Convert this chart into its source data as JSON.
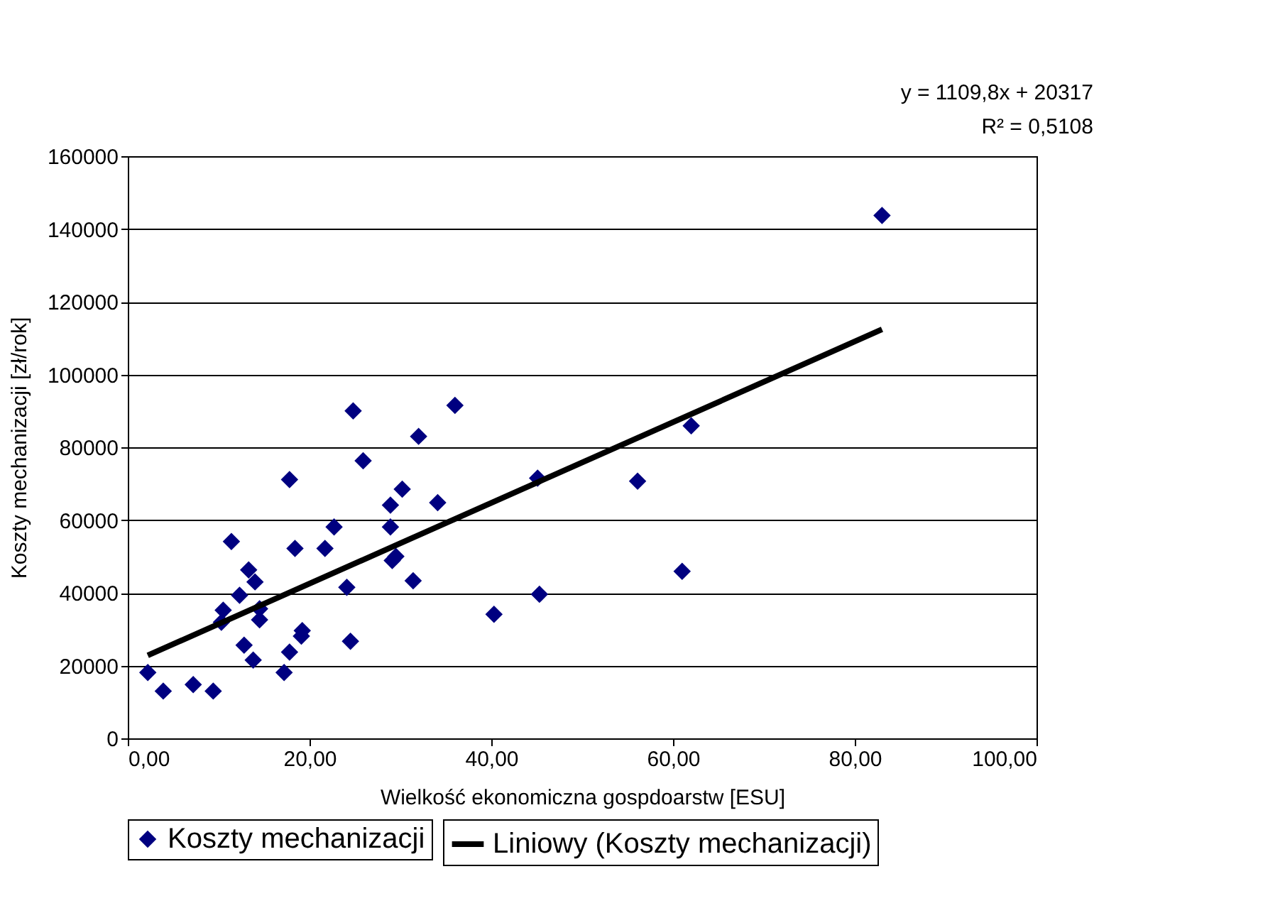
{
  "chart_data": {
    "type": "scatter",
    "xlabel": "Wielkość ekonomiczna gospdoarstw [ESU]",
    "ylabel": "Koszty mechanizacji [zł/rok]",
    "annotations": [
      "y = 1109,8x + 20317",
      "R² = 0,5108"
    ],
    "xlim": [
      0,
      100
    ],
    "xticks": [
      {
        "value": 0,
        "label": "0,00"
      },
      {
        "value": 20,
        "label": "20,00"
      },
      {
        "value": 40,
        "label": "40,00"
      },
      {
        "value": 60,
        "label": "60,00"
      },
      {
        "value": 80,
        "label": "80,00"
      },
      {
        "value": 100,
        "label": "100,00"
      }
    ],
    "ylim": [
      0,
      160000
    ],
    "yticks": [
      0,
      20000,
      40000,
      60000,
      80000,
      100000,
      120000,
      140000,
      160000
    ],
    "grid": "y",
    "legend": "bottom",
    "series": [
      {
        "name": "Koszty mechanizacji",
        "marker": "diamond",
        "color": "#000080",
        "x": [
          2.2,
          3.9,
          7.2,
          9.4,
          10.3,
          10.5,
          11.4,
          12.3,
          12.8,
          13.3,
          13.8,
          14.0,
          14.5,
          14.5,
          17.2,
          17.8,
          17.8,
          18.4,
          19.1,
          19.2,
          21.7,
          22.7,
          24.1,
          24.5,
          24.8,
          25.9,
          28.9,
          28.9,
          29.1,
          29.5,
          30.2,
          31.4,
          32.0,
          34.1,
          36.0,
          40.3,
          45.1,
          45.3,
          56.1,
          61.0,
          62.0,
          83.0
        ],
        "values": [
          18100,
          13000,
          14800,
          13000,
          31900,
          35200,
          54100,
          39300,
          25600,
          46300,
          21500,
          43000,
          35600,
          32600,
          18100,
          23700,
          71100,
          52200,
          28100,
          29600,
          52200,
          58100,
          41500,
          26700,
          90000,
          76300,
          64100,
          58100,
          48900,
          50000,
          68500,
          43300,
          83000,
          64800,
          91500,
          34100,
          71500,
          39600,
          70700,
          45900,
          85900,
          143700
        ]
      },
      {
        "name": "Liniowy (Koszty mechanizacji)",
        "type": "line",
        "line_style": "solid",
        "color": "#000000",
        "x": [
          2.2,
          83.0
        ],
        "values": [
          22800,
          112400
        ]
      }
    ]
  }
}
